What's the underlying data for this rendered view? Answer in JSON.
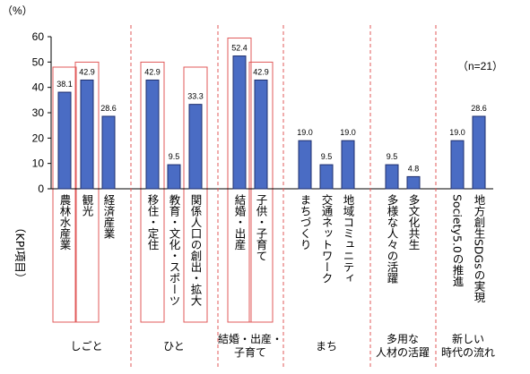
{
  "chart_data": {
    "type": "bar",
    "unit_label": "（%）",
    "ylabel": "（KPI項目）",
    "note": "（n=21）",
    "ylim": [
      0,
      60
    ],
    "yticks": [
      0,
      10,
      20,
      30,
      40,
      50,
      60
    ],
    "categories": [
      "農林水産業",
      "観光",
      "経済産業",
      "移住・定住",
      "教育・文化・スポーツ",
      "関係人口の創出・拡大",
      "結婚・出産",
      "子供・子育て",
      "まちづくり",
      "交通ネットワーク",
      "地域コミュニティ",
      "多様な人々の活躍",
      "多文化共生",
      "Society5.0の推進",
      "地方創生SDGsの実現"
    ],
    "values": [
      38.1,
      42.9,
      28.6,
      42.9,
      9.5,
      33.3,
      52.4,
      42.9,
      19.0,
      9.5,
      19.0,
      9.5,
      4.8,
      19.0,
      28.6
    ],
    "value_labels": [
      "38.1",
      "42.9",
      "28.6",
      "42.9",
      "9.5",
      "33.3",
      "52.4",
      "42.9",
      "19.0",
      "9.5",
      "19.0",
      "9.5",
      "4.8",
      "19.0",
      "28.6"
    ],
    "highlighted": [
      true,
      true,
      false,
      true,
      false,
      true,
      true,
      true,
      false,
      false,
      false,
      false,
      false,
      false,
      false
    ],
    "groups": [
      {
        "label_lines": [
          "しごと"
        ],
        "size": 3
      },
      {
        "label_lines": [
          "ひと"
        ],
        "size": 3
      },
      {
        "label_lines": [
          "結婚・出産・",
          "子育て"
        ],
        "size": 2
      },
      {
        "label_lines": [
          "まち"
        ],
        "size": 3
      },
      {
        "label_lines": [
          "多用な",
          "人材の活躍"
        ],
        "size": 2
      },
      {
        "label_lines": [
          "新しい",
          "時代の流れ"
        ],
        "size": 2
      }
    ],
    "colors": {
      "bar": "#4a6cc4",
      "bar_edge": "#1f2f6e",
      "highlight_box": "#e05a5a",
      "divider": "#e05a5a"
    }
  }
}
